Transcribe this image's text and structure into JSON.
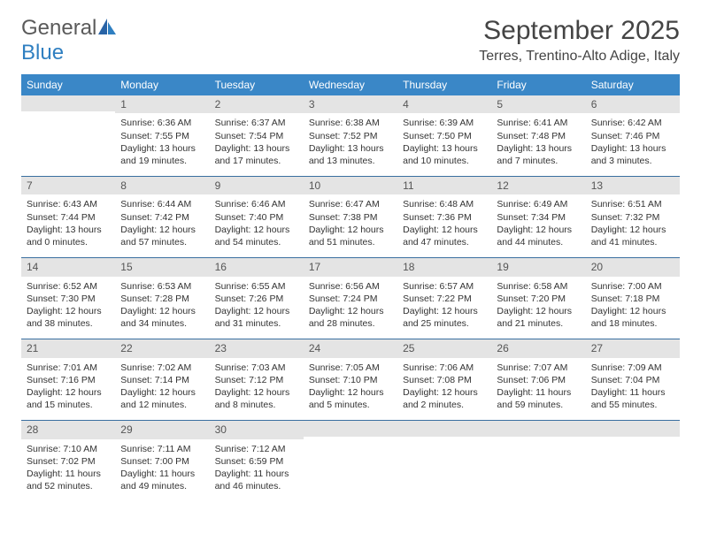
{
  "brand": {
    "part1": "General",
    "part2": "Blue"
  },
  "colors": {
    "brand_blue": "#2f7fc1",
    "header_blue": "#3a87c7",
    "rule": "#3a6fa0",
    "daynum_bg": "#e4e4e4",
    "text": "#333333",
    "title_text": "#444444"
  },
  "title": "September 2025",
  "location": "Terres, Trentino-Alto Adige, Italy",
  "weekdays": [
    "Sunday",
    "Monday",
    "Tuesday",
    "Wednesday",
    "Thursday",
    "Friday",
    "Saturday"
  ],
  "weeks": [
    [
      {
        "day": "",
        "sunrise": "",
        "sunset": "",
        "daylight": ""
      },
      {
        "day": "1",
        "sunrise": "Sunrise: 6:36 AM",
        "sunset": "Sunset: 7:55 PM",
        "daylight": "Daylight: 13 hours and 19 minutes."
      },
      {
        "day": "2",
        "sunrise": "Sunrise: 6:37 AM",
        "sunset": "Sunset: 7:54 PM",
        "daylight": "Daylight: 13 hours and 17 minutes."
      },
      {
        "day": "3",
        "sunrise": "Sunrise: 6:38 AM",
        "sunset": "Sunset: 7:52 PM",
        "daylight": "Daylight: 13 hours and 13 minutes."
      },
      {
        "day": "4",
        "sunrise": "Sunrise: 6:39 AM",
        "sunset": "Sunset: 7:50 PM",
        "daylight": "Daylight: 13 hours and 10 minutes."
      },
      {
        "day": "5",
        "sunrise": "Sunrise: 6:41 AM",
        "sunset": "Sunset: 7:48 PM",
        "daylight": "Daylight: 13 hours and 7 minutes."
      },
      {
        "day": "6",
        "sunrise": "Sunrise: 6:42 AM",
        "sunset": "Sunset: 7:46 PM",
        "daylight": "Daylight: 13 hours and 3 minutes."
      }
    ],
    [
      {
        "day": "7",
        "sunrise": "Sunrise: 6:43 AM",
        "sunset": "Sunset: 7:44 PM",
        "daylight": "Daylight: 13 hours and 0 minutes."
      },
      {
        "day": "8",
        "sunrise": "Sunrise: 6:44 AM",
        "sunset": "Sunset: 7:42 PM",
        "daylight": "Daylight: 12 hours and 57 minutes."
      },
      {
        "day": "9",
        "sunrise": "Sunrise: 6:46 AM",
        "sunset": "Sunset: 7:40 PM",
        "daylight": "Daylight: 12 hours and 54 minutes."
      },
      {
        "day": "10",
        "sunrise": "Sunrise: 6:47 AM",
        "sunset": "Sunset: 7:38 PM",
        "daylight": "Daylight: 12 hours and 51 minutes."
      },
      {
        "day": "11",
        "sunrise": "Sunrise: 6:48 AM",
        "sunset": "Sunset: 7:36 PM",
        "daylight": "Daylight: 12 hours and 47 minutes."
      },
      {
        "day": "12",
        "sunrise": "Sunrise: 6:49 AM",
        "sunset": "Sunset: 7:34 PM",
        "daylight": "Daylight: 12 hours and 44 minutes."
      },
      {
        "day": "13",
        "sunrise": "Sunrise: 6:51 AM",
        "sunset": "Sunset: 7:32 PM",
        "daylight": "Daylight: 12 hours and 41 minutes."
      }
    ],
    [
      {
        "day": "14",
        "sunrise": "Sunrise: 6:52 AM",
        "sunset": "Sunset: 7:30 PM",
        "daylight": "Daylight: 12 hours and 38 minutes."
      },
      {
        "day": "15",
        "sunrise": "Sunrise: 6:53 AM",
        "sunset": "Sunset: 7:28 PM",
        "daylight": "Daylight: 12 hours and 34 minutes."
      },
      {
        "day": "16",
        "sunrise": "Sunrise: 6:55 AM",
        "sunset": "Sunset: 7:26 PM",
        "daylight": "Daylight: 12 hours and 31 minutes."
      },
      {
        "day": "17",
        "sunrise": "Sunrise: 6:56 AM",
        "sunset": "Sunset: 7:24 PM",
        "daylight": "Daylight: 12 hours and 28 minutes."
      },
      {
        "day": "18",
        "sunrise": "Sunrise: 6:57 AM",
        "sunset": "Sunset: 7:22 PM",
        "daylight": "Daylight: 12 hours and 25 minutes."
      },
      {
        "day": "19",
        "sunrise": "Sunrise: 6:58 AM",
        "sunset": "Sunset: 7:20 PM",
        "daylight": "Daylight: 12 hours and 21 minutes."
      },
      {
        "day": "20",
        "sunrise": "Sunrise: 7:00 AM",
        "sunset": "Sunset: 7:18 PM",
        "daylight": "Daylight: 12 hours and 18 minutes."
      }
    ],
    [
      {
        "day": "21",
        "sunrise": "Sunrise: 7:01 AM",
        "sunset": "Sunset: 7:16 PM",
        "daylight": "Daylight: 12 hours and 15 minutes."
      },
      {
        "day": "22",
        "sunrise": "Sunrise: 7:02 AM",
        "sunset": "Sunset: 7:14 PM",
        "daylight": "Daylight: 12 hours and 12 minutes."
      },
      {
        "day": "23",
        "sunrise": "Sunrise: 7:03 AM",
        "sunset": "Sunset: 7:12 PM",
        "daylight": "Daylight: 12 hours and 8 minutes."
      },
      {
        "day": "24",
        "sunrise": "Sunrise: 7:05 AM",
        "sunset": "Sunset: 7:10 PM",
        "daylight": "Daylight: 12 hours and 5 minutes."
      },
      {
        "day": "25",
        "sunrise": "Sunrise: 7:06 AM",
        "sunset": "Sunset: 7:08 PM",
        "daylight": "Daylight: 12 hours and 2 minutes."
      },
      {
        "day": "26",
        "sunrise": "Sunrise: 7:07 AM",
        "sunset": "Sunset: 7:06 PM",
        "daylight": "Daylight: 11 hours and 59 minutes."
      },
      {
        "day": "27",
        "sunrise": "Sunrise: 7:09 AM",
        "sunset": "Sunset: 7:04 PM",
        "daylight": "Daylight: 11 hours and 55 minutes."
      }
    ],
    [
      {
        "day": "28",
        "sunrise": "Sunrise: 7:10 AM",
        "sunset": "Sunset: 7:02 PM",
        "daylight": "Daylight: 11 hours and 52 minutes."
      },
      {
        "day": "29",
        "sunrise": "Sunrise: 7:11 AM",
        "sunset": "Sunset: 7:00 PM",
        "daylight": "Daylight: 11 hours and 49 minutes."
      },
      {
        "day": "30",
        "sunrise": "Sunrise: 7:12 AM",
        "sunset": "Sunset: 6:59 PM",
        "daylight": "Daylight: 11 hours and 46 minutes."
      },
      {
        "day": "",
        "sunrise": "",
        "sunset": "",
        "daylight": ""
      },
      {
        "day": "",
        "sunrise": "",
        "sunset": "",
        "daylight": ""
      },
      {
        "day": "",
        "sunrise": "",
        "sunset": "",
        "daylight": ""
      },
      {
        "day": "",
        "sunrise": "",
        "sunset": "",
        "daylight": ""
      }
    ]
  ]
}
